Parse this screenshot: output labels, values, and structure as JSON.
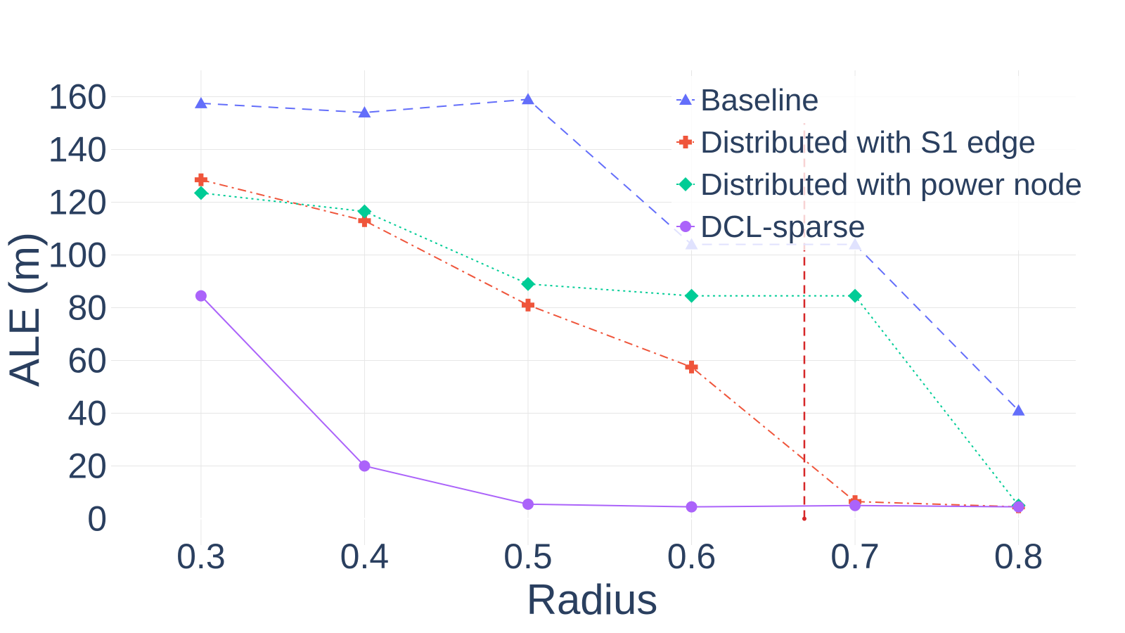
{
  "chart_data": {
    "type": "line",
    "xlabel": "Radius",
    "ylabel": "ALE (m)",
    "x": [
      0.3,
      0.4,
      0.5,
      0.6,
      0.7,
      0.8
    ],
    "x_ticks": [
      "0.3",
      "0.4",
      "0.5",
      "0.6",
      "0.7",
      "0.8"
    ],
    "y_ticks": [
      "0",
      "20",
      "40",
      "60",
      "80",
      "100",
      "120",
      "140",
      "160"
    ],
    "xlim": [
      0.245,
      0.835
    ],
    "ylim": [
      -10,
      170
    ],
    "grid": true,
    "legend_position": "top-right",
    "series": [
      {
        "name": "Baseline",
        "values": [
          157.5,
          154,
          159,
          104,
          104,
          41
        ],
        "color": "#636efa",
        "dash": "dash",
        "marker": "triangle-up"
      },
      {
        "name": "Distributed with S1 edge",
        "values": [
          128.5,
          113,
          81,
          57.5,
          6.5,
          4.5
        ],
        "color": "#ef553b",
        "dash": "dashdot",
        "marker": "cross"
      },
      {
        "name": "Distributed with power node",
        "values": [
          123.5,
          116.5,
          89,
          84.5,
          84.5,
          5
        ],
        "color": "#00cc96",
        "dash": "dot",
        "marker": "diamond"
      },
      {
        "name": "DCL-sparse",
        "values": [
          84.5,
          20,
          5.5,
          4.5,
          5,
          4.5
        ],
        "color": "#ab63fa",
        "dash": "solid",
        "marker": "circle"
      }
    ],
    "annotations": [
      {
        "type": "vline",
        "x": 0.669,
        "y_from": 0,
        "y_to": 150,
        "color": "#d62728"
      }
    ]
  }
}
